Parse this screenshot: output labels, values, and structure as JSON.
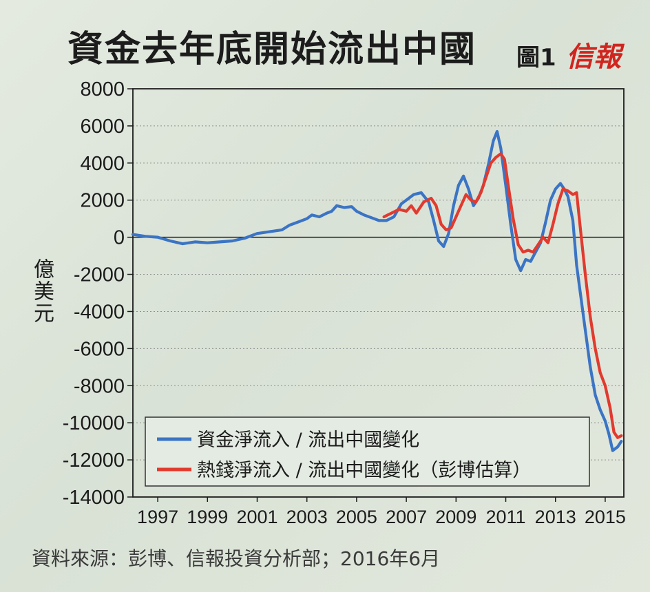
{
  "title": "資金去年底開始流出中國",
  "figure_label": "圖1",
  "brand": "信報",
  "source": "資料來源：彭博、信報投資分析部；2016年6月",
  "colors": {
    "blue": "#3b74c4",
    "red": "#e23a2e",
    "grid": "#8f8f8f",
    "axis": "#1c1c1c"
  },
  "chart_data": {
    "type": "line",
    "ylabel": "億美元",
    "xlim": [
      1996,
      2015.75
    ],
    "ylim": [
      -14000,
      8000
    ],
    "y_ticks": [
      8000,
      6000,
      4000,
      2000,
      0,
      -2000,
      -4000,
      -6000,
      -8000,
      -10000,
      -12000,
      -14000
    ],
    "y_tick_labels": [
      "8000",
      "6000",
      "4000",
      "2000",
      "0",
      "-2000",
      "-4000",
      "-6000",
      "-8000",
      "-10000",
      "-12000",
      "-14000"
    ],
    "x_ticks": [
      1997,
      1999,
      2001,
      2003,
      2005,
      2007,
      2009,
      2011,
      2013,
      2015
    ],
    "x_tick_labels": [
      "1997",
      "1999",
      "2001",
      "2003",
      "2005",
      "2007",
      "2009",
      "2011",
      "2013",
      "2015"
    ],
    "grid": "horizontal-dotted",
    "legend_position": "bottom",
    "series": [
      {
        "name": "資金淨流入 / 流出中國變化",
        "color": "#3b74c4",
        "x": [
          1996.0,
          1996.5,
          1997.0,
          1997.5,
          1998.0,
          1998.5,
          1999.0,
          1999.5,
          2000.0,
          2000.5,
          2001.0,
          2001.5,
          2002.0,
          2002.3,
          2002.6,
          2003.0,
          2003.2,
          2003.5,
          2003.8,
          2004.0,
          2004.2,
          2004.5,
          2004.8,
          2005.0,
          2005.3,
          2005.6,
          2005.9,
          2006.2,
          2006.5,
          2006.8,
          2007.0,
          2007.3,
          2007.6,
          2007.9,
          2008.1,
          2008.3,
          2008.5,
          2008.7,
          2008.9,
          2009.1,
          2009.3,
          2009.5,
          2009.7,
          2009.9,
          2010.1,
          2010.3,
          2010.5,
          2010.65,
          2010.8,
          2011.0,
          2011.2,
          2011.4,
          2011.6,
          2011.8,
          2012.0,
          2012.2,
          2012.4,
          2012.6,
          2012.8,
          2013.0,
          2013.2,
          2013.35,
          2013.5,
          2013.7,
          2013.85,
          2014.0,
          2014.2,
          2014.4,
          2014.6,
          2014.8,
          2015.0,
          2015.15,
          2015.3,
          2015.5,
          2015.65
        ],
        "y": [
          150,
          50,
          0,
          -200,
          -350,
          -250,
          -300,
          -250,
          -200,
          -50,
          200,
          300,
          400,
          650,
          800,
          1000,
          1200,
          1100,
          1300,
          1400,
          1700,
          1600,
          1650,
          1400,
          1200,
          1050,
          900,
          900,
          1100,
          1800,
          2000,
          2300,
          2400,
          1900,
          900,
          -200,
          -500,
          200,
          1700,
          2800,
          3300,
          2600,
          1700,
          2100,
          2800,
          3900,
          5200,
          5700,
          4800,
          2800,
          700,
          -1200,
          -1800,
          -1200,
          -1300,
          -800,
          -300,
          800,
          2000,
          2600,
          2900,
          2600,
          2200,
          900,
          -1500,
          -3000,
          -5000,
          -7000,
          -8500,
          -9300,
          -9900,
          -10600,
          -11500,
          -11300,
          -11000
        ]
      },
      {
        "name": "熱錢淨流入 / 流出中國變化（彭博估算）",
        "color": "#e23a2e",
        "x": [
          2006.1,
          2006.4,
          2006.7,
          2007.0,
          2007.2,
          2007.4,
          2007.7,
          2008.0,
          2008.2,
          2008.4,
          2008.6,
          2008.8,
          2009.0,
          2009.2,
          2009.4,
          2009.6,
          2009.8,
          2010.0,
          2010.2,
          2010.4,
          2010.6,
          2010.8,
          2010.95,
          2011.1,
          2011.3,
          2011.5,
          2011.7,
          2011.9,
          2012.1,
          2012.3,
          2012.5,
          2012.7,
          2012.9,
          2013.1,
          2013.3,
          2013.5,
          2013.7,
          2013.85,
          2014.0,
          2014.2,
          2014.4,
          2014.6,
          2014.8,
          2015.0,
          2015.2,
          2015.35,
          2015.5,
          2015.65
        ],
        "y": [
          1100,
          1300,
          1500,
          1400,
          1700,
          1300,
          1900,
          2100,
          1700,
          700,
          400,
          500,
          1100,
          1700,
          2300,
          2000,
          1900,
          2400,
          3200,
          4000,
          4300,
          4500,
          4200,
          2800,
          1000,
          -400,
          -800,
          -700,
          -800,
          -400,
          0,
          -300,
          700,
          1800,
          2600,
          2500,
          2300,
          2400,
          500,
          -2000,
          -4300,
          -6000,
          -7300,
          -8000,
          -9200,
          -10500,
          -10800,
          -10700
        ]
      }
    ]
  }
}
